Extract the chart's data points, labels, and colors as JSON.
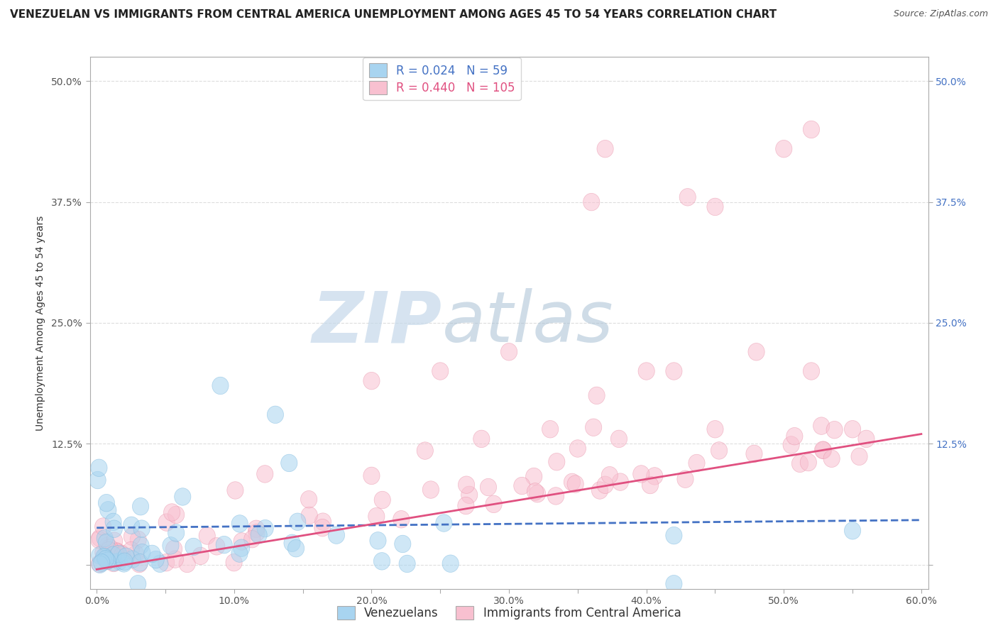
{
  "title": "VENEZUELAN VS IMMIGRANTS FROM CENTRAL AMERICA UNEMPLOYMENT AMONG AGES 45 TO 54 YEARS CORRELATION CHART",
  "source": "Source: ZipAtlas.com",
  "ylabel": "Unemployment Among Ages 45 to 54 years",
  "xlim": [
    -0.005,
    0.605
  ],
  "ylim": [
    -0.025,
    0.525
  ],
  "yticks": [
    0.0,
    0.125,
    0.25,
    0.375,
    0.5
  ],
  "ytick_labels_left": [
    "",
    "12.5%",
    "25.0%",
    "37.5%",
    "50.0%"
  ],
  "ytick_labels_right": [
    "",
    "12.5%",
    "25.0%",
    "37.5%",
    "50.0%"
  ],
  "xtick_labels": [
    "0.0%",
    "",
    "10.0%",
    "",
    "20.0%",
    "",
    "30.0%",
    "",
    "40.0%",
    "",
    "50.0%",
    "",
    "60.0%"
  ],
  "xticks": [
    0.0,
    0.05,
    0.1,
    0.15,
    0.2,
    0.25,
    0.3,
    0.35,
    0.4,
    0.45,
    0.5,
    0.55,
    0.6
  ],
  "series": [
    {
      "name": "Venezuelans",
      "R": 0.024,
      "N": 59,
      "marker_color": "#a8d4f0",
      "marker_edge": "#7ab8de",
      "line_color": "#4472c4",
      "line_style": "--",
      "trend_x": [
        0.0,
        0.6
      ],
      "trend_y": [
        0.038,
        0.046
      ]
    },
    {
      "name": "Immigrants from Central America",
      "R": 0.44,
      "N": 105,
      "marker_color": "#f8c0d0",
      "marker_edge": "#e890a8",
      "line_color": "#e05080",
      "line_style": "-",
      "trend_x": [
        0.0,
        0.6
      ],
      "trend_y": [
        -0.005,
        0.135
      ]
    }
  ],
  "watermark_zip": "ZIP",
  "watermark_atlas": "atlas",
  "watermark_color_zip": "#c8d8e8",
  "watermark_color_atlas": "#a8c4d8",
  "background_color": "#ffffff",
  "grid_color": "#dddddd",
  "title_fontsize": 11,
  "axis_label_fontsize": 10,
  "tick_fontsize": 10,
  "legend_fontsize": 12,
  "source_fontsize": 9
}
